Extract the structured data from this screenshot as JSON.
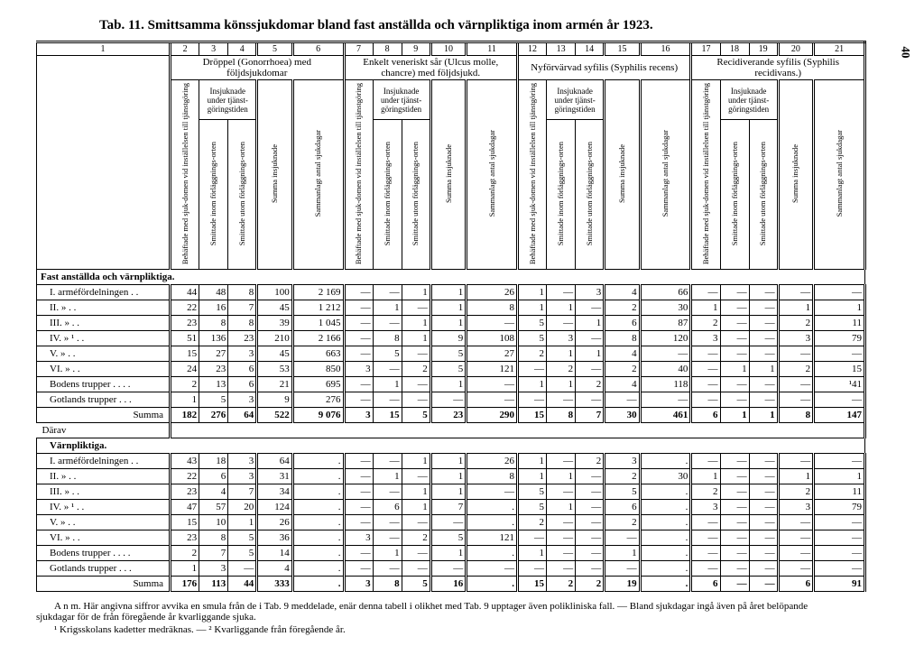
{
  "title": "Tab. 11.  Smittsamma könssjukdomar bland fast anställda och värnpliktiga inom armén år 1923.",
  "page_number": "40",
  "colnums": [
    "1",
    "2",
    "3",
    "4",
    "5",
    "6",
    "7",
    "8",
    "9",
    "10",
    "11",
    "12",
    "13",
    "14",
    "15",
    "16",
    "17",
    "18",
    "19",
    "20",
    "21"
  ],
  "group_headers": {
    "g1": "Dröppel (Gonorrhoea) med följdsjukdomar",
    "g2": "Enkelt veneriskt sår (Ulcus molle, chancre) med följdsjukd.",
    "g3": "Nyförvärvad syfilis (Syphilis recens)",
    "g4": "Recidiverande syfilis (Syphilis recidivans.)"
  },
  "sub_headers": {
    "insj": "Insjuknade under tjänst-göringstiden",
    "beh": "Behäftade med sjuk-domen vid inställelsen till tjänstgöring",
    "in": "Smittade inom förläggnings-orten",
    "ut": "Smittade utom förläggnings-orten",
    "sumI": "Summa insjuknade",
    "antal": "Sammanlagt antal sjukdagar"
  },
  "sections": {
    "s1": "Fast anställda och värnpliktiga.",
    "s2": "Värnpliktiga."
  },
  "darav": "Därav",
  "summa": "Summa",
  "row_labels": [
    "I. arméfördelningen . .",
    "II.        »          . .",
    "III.       »          . .",
    "IV.        »         ¹ . .",
    "V.         »          . .",
    "VI.        »          . .",
    "Bodens trupper . . . .",
    "Gotlands trupper . . ."
  ],
  "data1": [
    [
      "44",
      "48",
      "8",
      "100",
      "2 169",
      "—",
      "—",
      "1",
      "1",
      "26",
      "1",
      "—",
      "3",
      "4",
      "66",
      "—",
      "—",
      "—",
      "—",
      "—"
    ],
    [
      "22",
      "16",
      "7",
      "45",
      "1 212",
      "—",
      "1",
      "—",
      "1",
      "8",
      "1",
      "1",
      "—",
      "2",
      "30",
      "1",
      "—",
      "—",
      "1",
      "1"
    ],
    [
      "23",
      "8",
      "8",
      "39",
      "1 045",
      "—",
      "—",
      "1",
      "1",
      "—",
      "5",
      "—",
      "1",
      "6",
      "87",
      "2",
      "—",
      "—",
      "2",
      "11"
    ],
    [
      "51",
      "136",
      "23",
      "210",
      "2 166",
      "—",
      "8",
      "1",
      "9",
      "108",
      "5",
      "3",
      "—",
      "8",
      "120",
      "3",
      "—",
      "—",
      "3",
      "79"
    ],
    [
      "15",
      "27",
      "3",
      "45",
      "663",
      "—",
      "5",
      "—",
      "5",
      "27",
      "2",
      "1",
      "1",
      "4",
      "—",
      "—",
      "—",
      "—",
      "—",
      "—"
    ],
    [
      "24",
      "23",
      "6",
      "53",
      "850",
      "3",
      "—",
      "2",
      "5",
      "121",
      "—",
      "2",
      "—",
      "2",
      "40",
      "—",
      "1",
      "1",
      "2",
      "15"
    ],
    [
      "2",
      "13",
      "6",
      "21",
      "695",
      "—",
      "1",
      "—",
      "1",
      "—",
      "1",
      "1",
      "2",
      "4",
      "118",
      "—",
      "—",
      "—",
      "—",
      "¹41"
    ],
    [
      "1",
      "5",
      "3",
      "9",
      "276",
      "—",
      "—",
      "—",
      "—",
      "—",
      "—",
      "—",
      "—",
      "—",
      "—",
      "—",
      "—",
      "—",
      "—",
      "—"
    ]
  ],
  "sum1": [
    "182",
    "276",
    "64",
    "522",
    "9 076",
    "3",
    "15",
    "5",
    "23",
    "290",
    "15",
    "8",
    "7",
    "30",
    "461",
    "6",
    "1",
    "1",
    "8",
    "147"
  ],
  "data2": [
    [
      "43",
      "18",
      "3",
      "64",
      ".",
      "—",
      "—",
      "1",
      "1",
      "26",
      "1",
      "—",
      "2",
      "3",
      ".",
      "—",
      "—",
      "—",
      "—",
      "—"
    ],
    [
      "22",
      "6",
      "3",
      "31",
      ".",
      "—",
      "1",
      "—",
      "1",
      "8",
      "1",
      "1",
      "—",
      "2",
      "30",
      "1",
      "—",
      "—",
      "1",
      "1"
    ],
    [
      "23",
      "4",
      "7",
      "34",
      ".",
      "—",
      "—",
      "1",
      "1",
      "—",
      "5",
      "—",
      "—",
      "5",
      ".",
      "2",
      "—",
      "—",
      "2",
      "11"
    ],
    [
      "47",
      "57",
      "20",
      "124",
      ".",
      "—",
      "6",
      "1",
      "7",
      ".",
      "5",
      "1",
      "—",
      "6",
      ".",
      "3",
      "—",
      "—",
      "3",
      "79"
    ],
    [
      "15",
      "10",
      "1",
      "26",
      ".",
      "—",
      "—",
      "—",
      "—",
      ".",
      "2",
      "—",
      "—",
      "2",
      ".",
      "—",
      "—",
      "—",
      "—",
      "—"
    ],
    [
      "23",
      "8",
      "5",
      "36",
      ".",
      "3",
      "—",
      "2",
      "5",
      "121",
      "—",
      "—",
      "—",
      "—",
      ".",
      "—",
      "—",
      "—",
      "—",
      "—"
    ],
    [
      "2",
      "7",
      "5",
      "14",
      ".",
      "—",
      "1",
      "—",
      "1",
      ".",
      "1",
      "—",
      "—",
      "1",
      ".",
      "—",
      "—",
      "—",
      "—",
      "—"
    ],
    [
      "1",
      "3",
      "—",
      "4",
      ".",
      "—",
      "—",
      "—",
      "—",
      "—",
      "—",
      "—",
      "—",
      "—",
      ".",
      "—",
      "—",
      "—",
      "—",
      "—"
    ]
  ],
  "sum2": [
    "176",
    "113",
    "44",
    "333",
    ".",
    "3",
    "8",
    "5",
    "16",
    ".",
    "15",
    "2",
    "2",
    "19",
    ".",
    "6",
    "—",
    "—",
    "6",
    "91"
  ],
  "footnotes": {
    "anm": "A n m.  Här angivna siffror avvika en smula från de i Tab. 9 meddelade, enär denna tabell i olikhet med Tab. 9 upptager även polikliniska fall. — Bland sjukdagar ingå även på året belöpande sjukdagar för de från föregående år kvarliggande sjuka.",
    "f1": "¹ Krigsskolans kadetter medräknas. — ² Kvarliggande från föregående år."
  }
}
